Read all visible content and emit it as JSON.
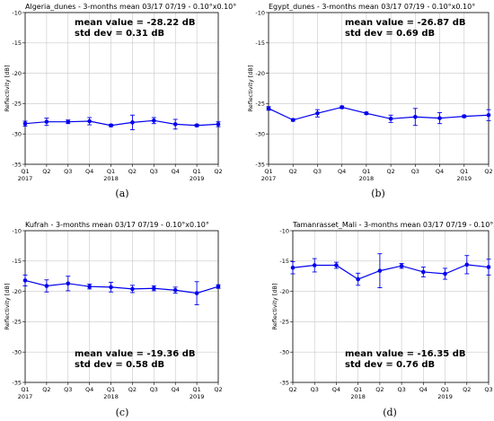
{
  "chart_data": [
    {
      "type": "line",
      "caption": "(a)",
      "title": "Algeria_dunes - 3-months mean 03/17 07/19 - 0.10°x0.10°",
      "ylabel": "Reflectivity [dB]",
      "ylim": [
        -35,
        -10
      ],
      "yticks": [
        -10,
        -15,
        -20,
        -25,
        -30,
        -35
      ],
      "x_labels": [
        [
          "Q1",
          "2017"
        ],
        [
          "Q2",
          ""
        ],
        [
          "Q3",
          ""
        ],
        [
          "Q4",
          ""
        ],
        [
          "Q1",
          "2018"
        ],
        [
          "Q2",
          ""
        ],
        [
          "Q3",
          ""
        ],
        [
          "Q4",
          ""
        ],
        [
          "Q1",
          "2019"
        ],
        [
          "Q2",
          ""
        ]
      ],
      "x": [
        0,
        1,
        2,
        3,
        4,
        5,
        6,
        7,
        8,
        9
      ],
      "values": [
        -28.3,
        -28.0,
        -28.0,
        -27.9,
        -28.6,
        -28.1,
        -27.8,
        -28.4,
        -28.6,
        -28.4
      ],
      "errors": [
        0.4,
        0.6,
        0.3,
        0.6,
        0.2,
        1.2,
        0.5,
        0.8,
        0.2,
        0.4
      ],
      "annotation": {
        "mean_label": "mean value = -28.22  dB",
        "std_label": "std dev =   0.31  dB",
        "position": "top-right"
      },
      "grid": true,
      "color": "#0000ee"
    },
    {
      "type": "line",
      "caption": "(b)",
      "title": "Egypt_dunes - 3-months mean 03/17 07/19 - 0.10°x0.10°",
      "ylabel": "Reflectivity [dB]",
      "ylim": [
        -35,
        -10
      ],
      "yticks": [
        -10,
        -15,
        -20,
        -25,
        -30,
        -35
      ],
      "x_labels": [
        [
          "Q1",
          "2017"
        ],
        [
          "Q2",
          ""
        ],
        [
          "Q3",
          ""
        ],
        [
          "Q4",
          ""
        ],
        [
          "Q1",
          "2018"
        ],
        [
          "Q2",
          ""
        ],
        [
          "Q3",
          ""
        ],
        [
          "Q4",
          ""
        ],
        [
          "Q1",
          "2019"
        ],
        [
          "Q2",
          ""
        ]
      ],
      "x": [
        0,
        1,
        2,
        3,
        4,
        5,
        6,
        7,
        8,
        9
      ],
      "values": [
        -25.8,
        -27.7,
        -26.6,
        -25.6,
        -26.6,
        -27.5,
        -27.2,
        -27.4,
        -27.1,
        -26.9
      ],
      "errors": [
        0.3,
        0.2,
        0.6,
        0.2,
        0.2,
        0.6,
        1.4,
        0.9,
        0.2,
        0.9
      ],
      "annotation": {
        "mean_label": "mean value = -26.87  dB",
        "std_label": "std dev =   0.69  dB",
        "position": "top-right"
      },
      "grid": true,
      "color": "#0000ee"
    },
    {
      "type": "line",
      "caption": "(c)",
      "title": "Kufrah - 3-months mean 03/17 07/19 - 0.10°x0.10°",
      "ylabel": "Reflectivity [dB]",
      "ylim": [
        -35,
        -10
      ],
      "yticks": [
        -10,
        -15,
        -20,
        -25,
        -30,
        -35
      ],
      "x_labels": [
        [
          "Q1",
          "2017"
        ],
        [
          "Q2",
          ""
        ],
        [
          "Q3",
          ""
        ],
        [
          "Q4",
          ""
        ],
        [
          "Q1",
          "2018"
        ],
        [
          "Q2",
          ""
        ],
        [
          "Q3",
          ""
        ],
        [
          "Q4",
          ""
        ],
        [
          "Q1",
          "2019"
        ],
        [
          "Q2",
          ""
        ]
      ],
      "x": [
        0,
        1,
        2,
        3,
        4,
        5,
        6,
        7,
        8,
        9
      ],
      "values": [
        -18.2,
        -19.1,
        -18.7,
        -19.2,
        -19.3,
        -19.6,
        -19.5,
        -19.8,
        -20.3,
        -19.2
      ],
      "errors": [
        0.9,
        1.0,
        1.2,
        0.4,
        0.8,
        0.6,
        0.4,
        0.5,
        1.9,
        0.3
      ],
      "annotation": {
        "mean_label": "mean value = -19.36  dB",
        "std_label": "std dev = 0.58 dB",
        "position": "bottom-right"
      },
      "grid": true,
      "color": "#0000ee"
    },
    {
      "type": "line",
      "caption": "(d)",
      "title": "Tamanrasset_Mali - 3-months mean 03/17 07/19 - 0.10°x0.10°",
      "ylabel": "Reflectivity [dB]",
      "ylim": [
        -35,
        -10
      ],
      "yticks": [
        -10,
        -15,
        -20,
        -25,
        -30,
        -35
      ],
      "x_labels": [
        [
          "Q2",
          ""
        ],
        [
          "Q3",
          ""
        ],
        [
          "Q4",
          ""
        ],
        [
          "Q1",
          "2018"
        ],
        [
          "Q2",
          ""
        ],
        [
          "Q3",
          ""
        ],
        [
          "Q4",
          ""
        ],
        [
          "Q1",
          "2019"
        ],
        [
          "Q2",
          ""
        ],
        [
          "Q3",
          ""
        ]
      ],
      "x": [
        0,
        1,
        2,
        3,
        4,
        5,
        6,
        7,
        8,
        9
      ],
      "values": [
        -16.1,
        -15.7,
        -15.7,
        -18.0,
        -16.6,
        -15.8,
        -16.8,
        -17.1,
        -15.6,
        -16.0
      ],
      "errors": [
        1.0,
        1.1,
        0.5,
        1.0,
        2.8,
        0.4,
        0.8,
        0.9,
        1.5,
        1.3
      ],
      "annotation": {
        "mean_label": "mean value = -16.35  dB",
        "std_label": "std dev = 0.76  dB",
        "position": "bottom-right"
      },
      "grid": true,
      "color": "#0000ee"
    }
  ]
}
